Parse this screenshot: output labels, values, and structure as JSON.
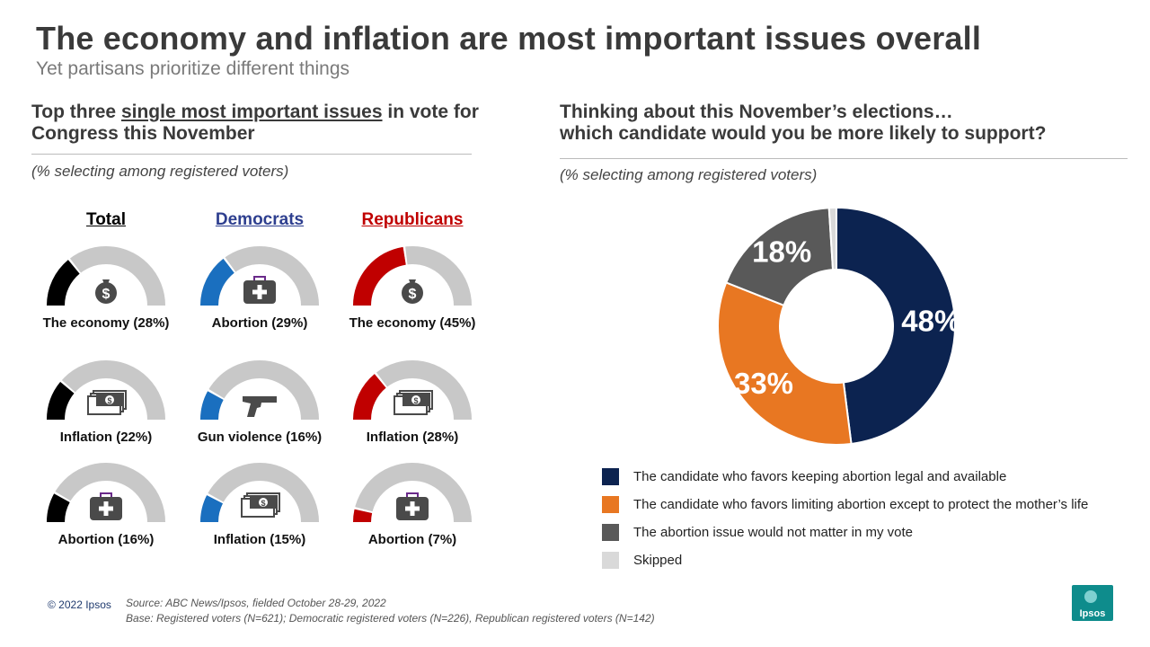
{
  "title": "The economy and inflation are most important issues overall",
  "subtitle": "Yet partisans prioritize different things",
  "left_panel": {
    "heading_pre": "Top three ",
    "heading_underlined": "single most important issues",
    "heading_post": " in vote for Congress this November",
    "note": "(% selecting among registered voters)"
  },
  "right_panel": {
    "heading_line1": "Thinking about this November’s elections…",
    "heading_line2": "which candidate would you be more likely to support?",
    "note": "(% selecting among registered voters)"
  },
  "colors": {
    "total": "#000000",
    "democrats": "#1a6fbf",
    "republicans": "#c00000",
    "gauge_track": "#c8c8c8",
    "navy": "#0c2350",
    "orange": "#e87722",
    "dark_gray": "#595959",
    "light_gray": "#d9d9d9",
    "icon": "#4a4a4a"
  },
  "chart_data": [
    {
      "type": "gauge",
      "title": "Top three single most important issues in vote for Congress this November",
      "columns": [
        {
          "name": "Total",
          "color": "#000000",
          "header_color": "#000000",
          "items": [
            {
              "label": "The economy (28%)",
              "value": 28,
              "icon": "money-bag"
            },
            {
              "label": "Inflation (22%)",
              "value": 22,
              "icon": "cash-stack"
            },
            {
              "label": "Abortion (16%)",
              "value": 16,
              "icon": "medical-kit"
            }
          ]
        },
        {
          "name": "Democrats",
          "color": "#1a6fbf",
          "header_color": "#2e3f8f",
          "items": [
            {
              "label": "Abortion (29%)",
              "value": 29,
              "icon": "medical-kit"
            },
            {
              "label": "Gun violence (16%)",
              "value": 16,
              "icon": "pistol"
            },
            {
              "label": "Inflation (15%)",
              "value": 15,
              "icon": "cash-stack"
            }
          ]
        },
        {
          "name": "Republicans",
          "color": "#c00000",
          "header_color": "#c00000",
          "items": [
            {
              "label": "The economy (45%)",
              "value": 45,
              "icon": "money-bag"
            },
            {
              "label": "Inflation (28%)",
              "value": 28,
              "icon": "cash-stack"
            },
            {
              "label": "Abortion (7%)",
              "value": 7,
              "icon": "medical-kit"
            }
          ]
        }
      ]
    },
    {
      "type": "pie",
      "title": "Thinking about this November’s elections… which candidate would you be more likely to support?",
      "slices": [
        {
          "label": "The candidate who favors keeping abortion legal and available",
          "value": 48,
          "display": "48%",
          "color": "#0c2350"
        },
        {
          "label": "The candidate who favors limiting abortion except to protect the mother’s life",
          "value": 33,
          "display": "33%",
          "color": "#e87722"
        },
        {
          "label": "The abortion issue would not matter in my vote",
          "value": 18,
          "display": "18%",
          "color": "#595959"
        },
        {
          "label": "Skipped",
          "value": 1,
          "display": "",
          "color": "#d9d9d9"
        }
      ]
    }
  ],
  "footer": {
    "copyright": "© 2022 Ipsos",
    "source_line1": "Source: ABC News/Ipsos, fielded October 28-29, 2022",
    "source_line2": "Base: Registered voters (N=621); Democratic registered voters (N=226), Republican registered voters (N=142)",
    "logo_text": "Ipsos"
  }
}
